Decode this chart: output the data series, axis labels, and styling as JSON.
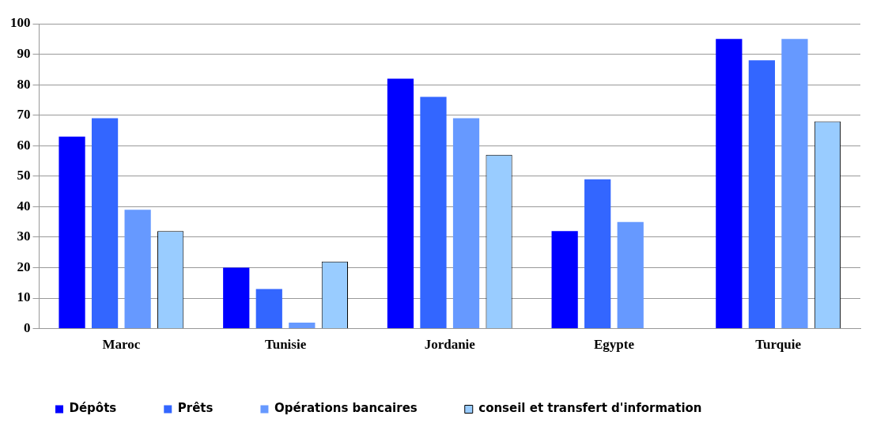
{
  "chart_data": {
    "type": "bar",
    "categories": [
      "Maroc",
      "Tunisie",
      "Jordanie",
      "Egypte",
      "Turquie"
    ],
    "series": [
      {
        "name": "Dépôts",
        "color": "#0000ff",
        "values": [
          63,
          20,
          82,
          32,
          95
        ]
      },
      {
        "name": "Prêts",
        "color": "#3366ff",
        "values": [
          69,
          13,
          76,
          49,
          88
        ]
      },
      {
        "name": "Opérations bancaires",
        "color": "#6699ff",
        "values": [
          39,
          2,
          69,
          35,
          95
        ]
      },
      {
        "name": "conseil et transfert d'information",
        "color": "#99ccff",
        "values": [
          32,
          22,
          57,
          0,
          68
        ]
      }
    ],
    "ylim": [
      0,
      100
    ],
    "yticks": [
      0,
      10,
      20,
      30,
      40,
      50,
      60,
      70,
      80,
      90,
      100
    ],
    "grid": "y",
    "legend": "bottom"
  }
}
